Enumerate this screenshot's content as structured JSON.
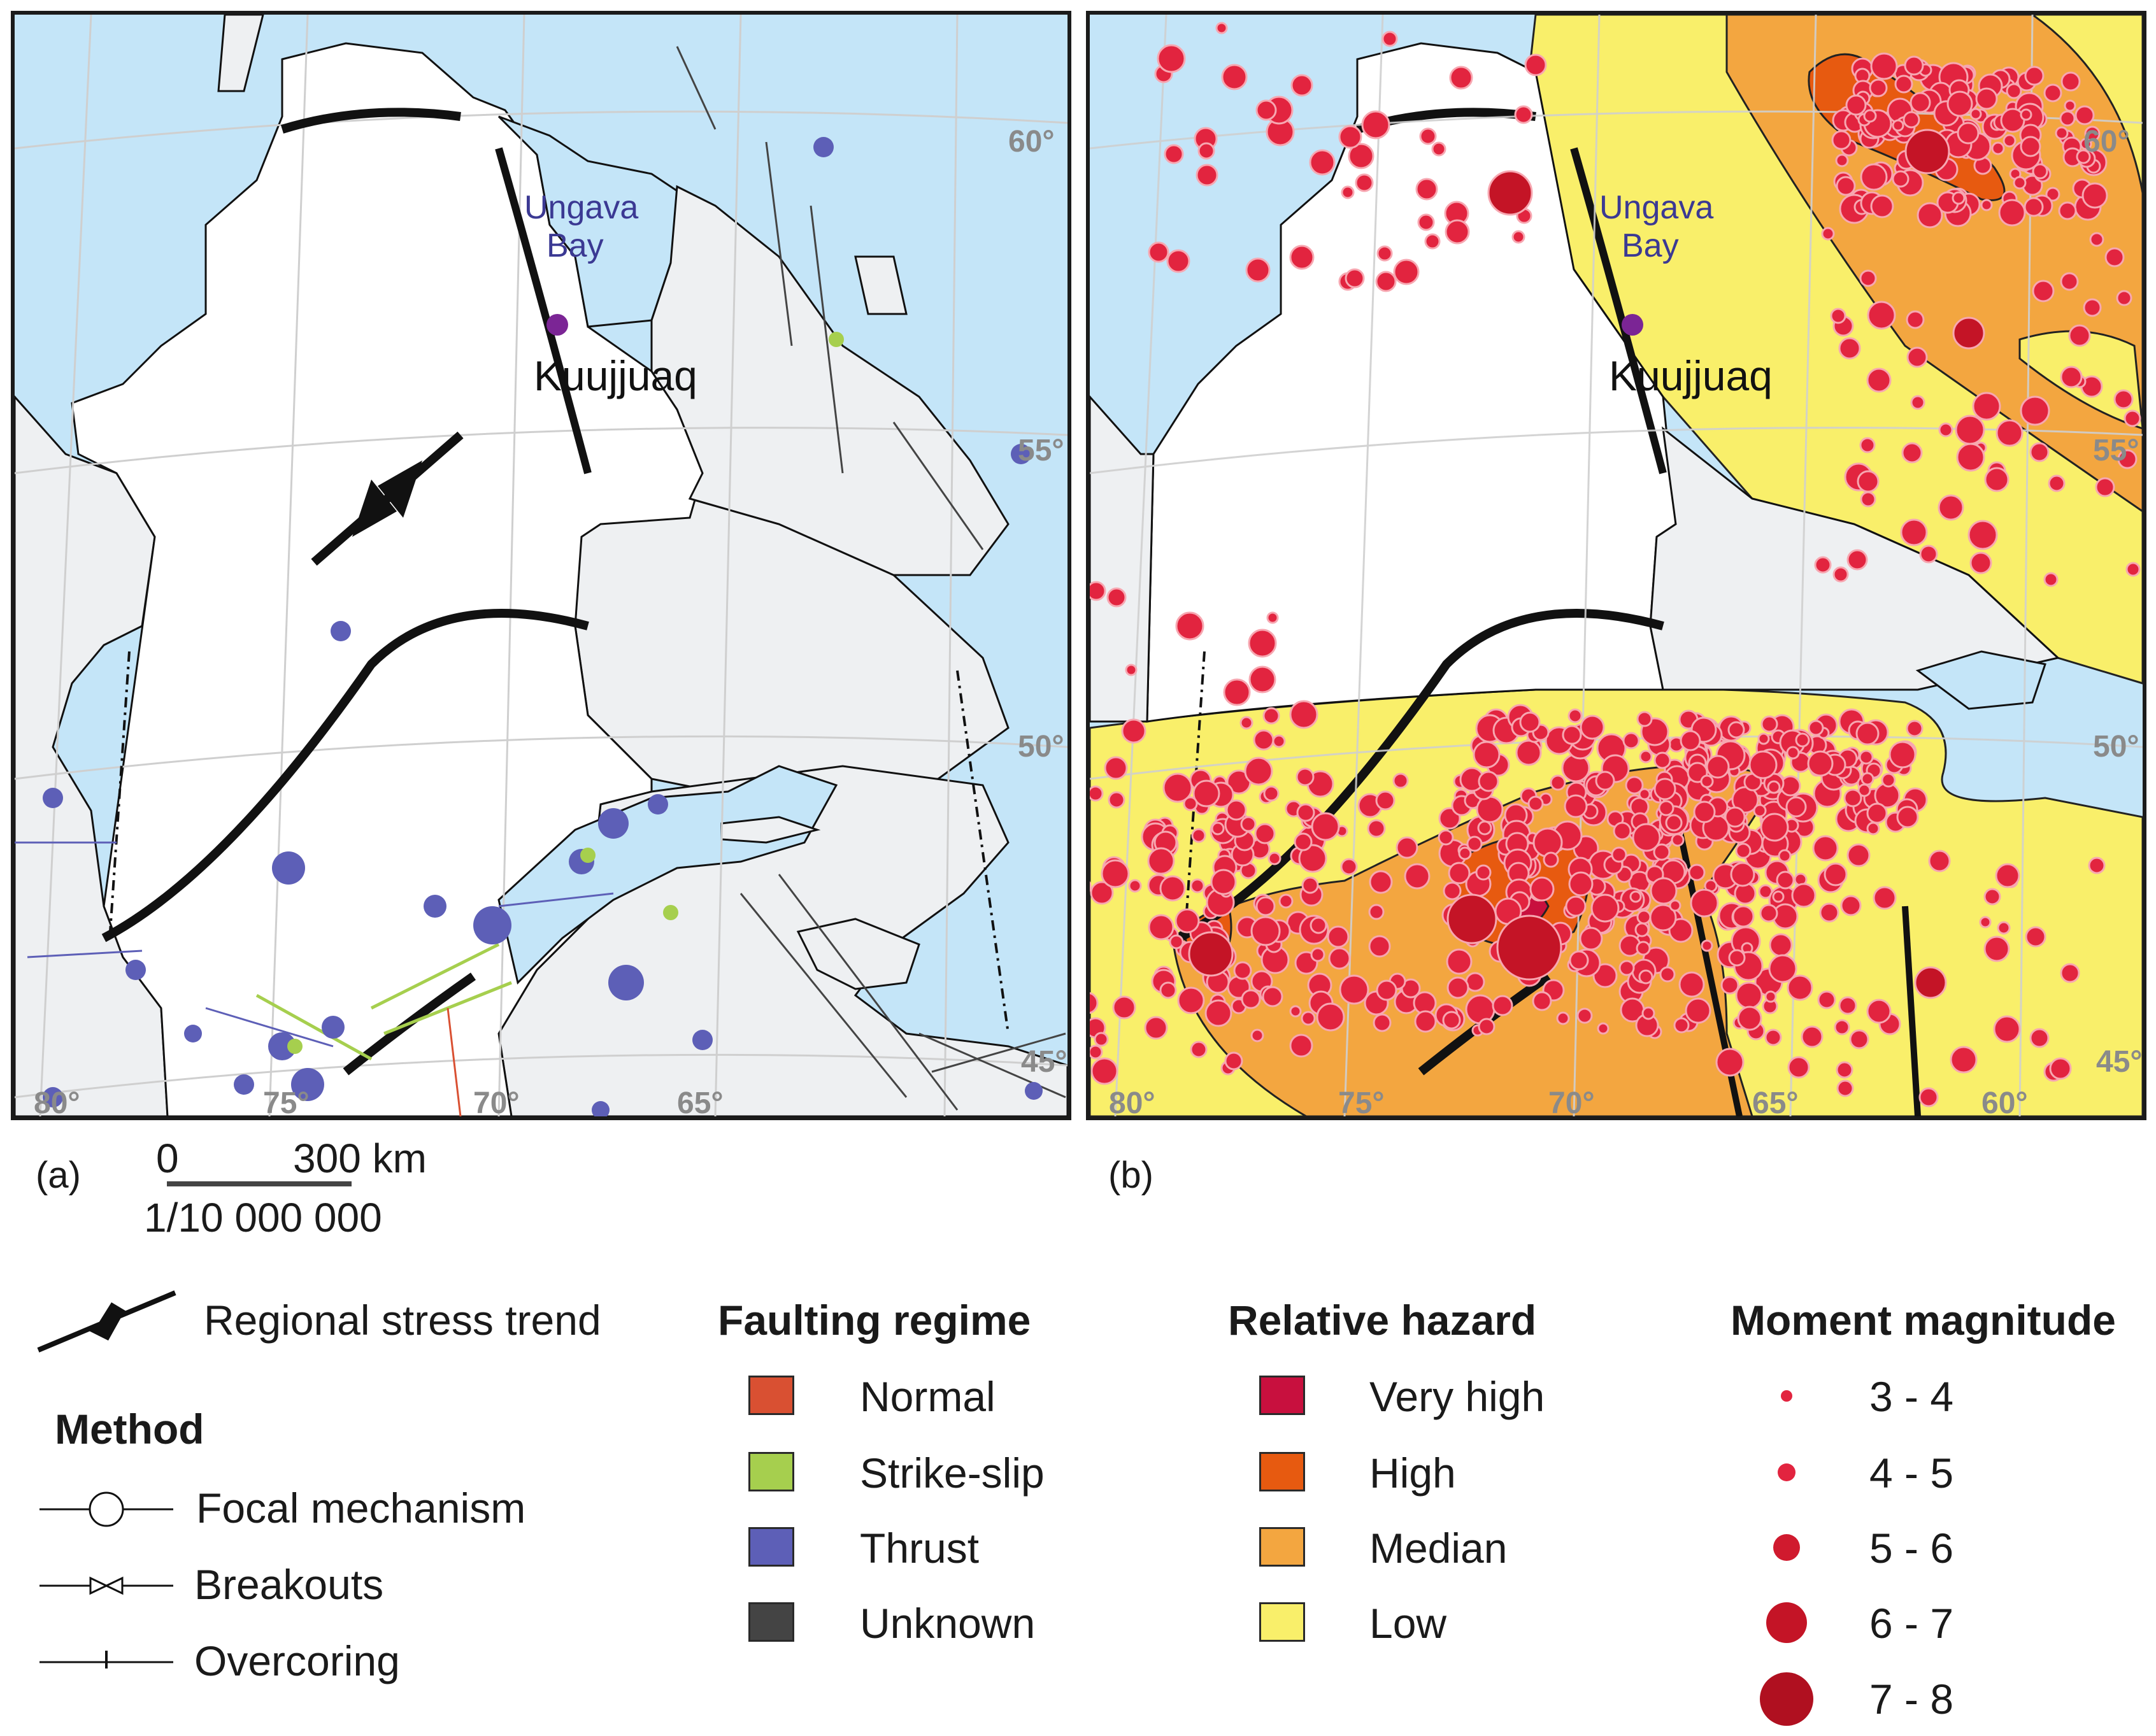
{
  "panels": {
    "a": {
      "label": "(a)"
    },
    "b": {
      "label": "(b)"
    }
  },
  "map_labels": {
    "bay": [
      "Ungava",
      "Bay"
    ],
    "town": "Kuujjuaq",
    "lat_ticks": [
      "60°",
      "55°",
      "50°",
      "45°"
    ],
    "lon_ticks": [
      "80°",
      "75°",
      "70°",
      "65°",
      "60°"
    ]
  },
  "scale_bar": {
    "start": "0",
    "end": "300 km",
    "ratio": "1/10 000 000"
  },
  "legend": {
    "stress_trend": "Regional stress trend",
    "method": {
      "title": "Method",
      "items": [
        "Focal mechanism",
        "Breakouts",
        "Overcoring"
      ]
    },
    "faulting_regime": {
      "title": "Faulting regime",
      "items": [
        {
          "label": "Normal",
          "color": "#d95032"
        },
        {
          "label": "Strike-slip",
          "color": "#a6cf4e"
        },
        {
          "label": "Thrust",
          "color": "#5d5fb7"
        },
        {
          "label": "Unknown",
          "color": "#444444"
        }
      ]
    },
    "relative_hazard": {
      "title": "Relative hazard",
      "items": [
        {
          "label": "Very high",
          "color": "#c8103e"
        },
        {
          "label": "High",
          "color": "#e75a10"
        },
        {
          "label": "Median",
          "color": "#f3a640"
        },
        {
          "label": "Low",
          "color": "#f9ef6a"
        }
      ]
    },
    "moment_magnitude": {
      "title": "Moment magnitude",
      "items": [
        "3 - 4",
        "4 - 5",
        "5 - 6",
        "6 - 7",
        "7 - 8"
      ]
    }
  },
  "colors": {
    "water": "#c4e5f8",
    "land_outside": "#eef0f2",
    "quebec": "#ffffff",
    "event": "#e2243f",
    "event_large": "#c41426",
    "town_marker": "#7b2595",
    "bay_label": "#3b3993",
    "grid": "#cfcfcf"
  }
}
